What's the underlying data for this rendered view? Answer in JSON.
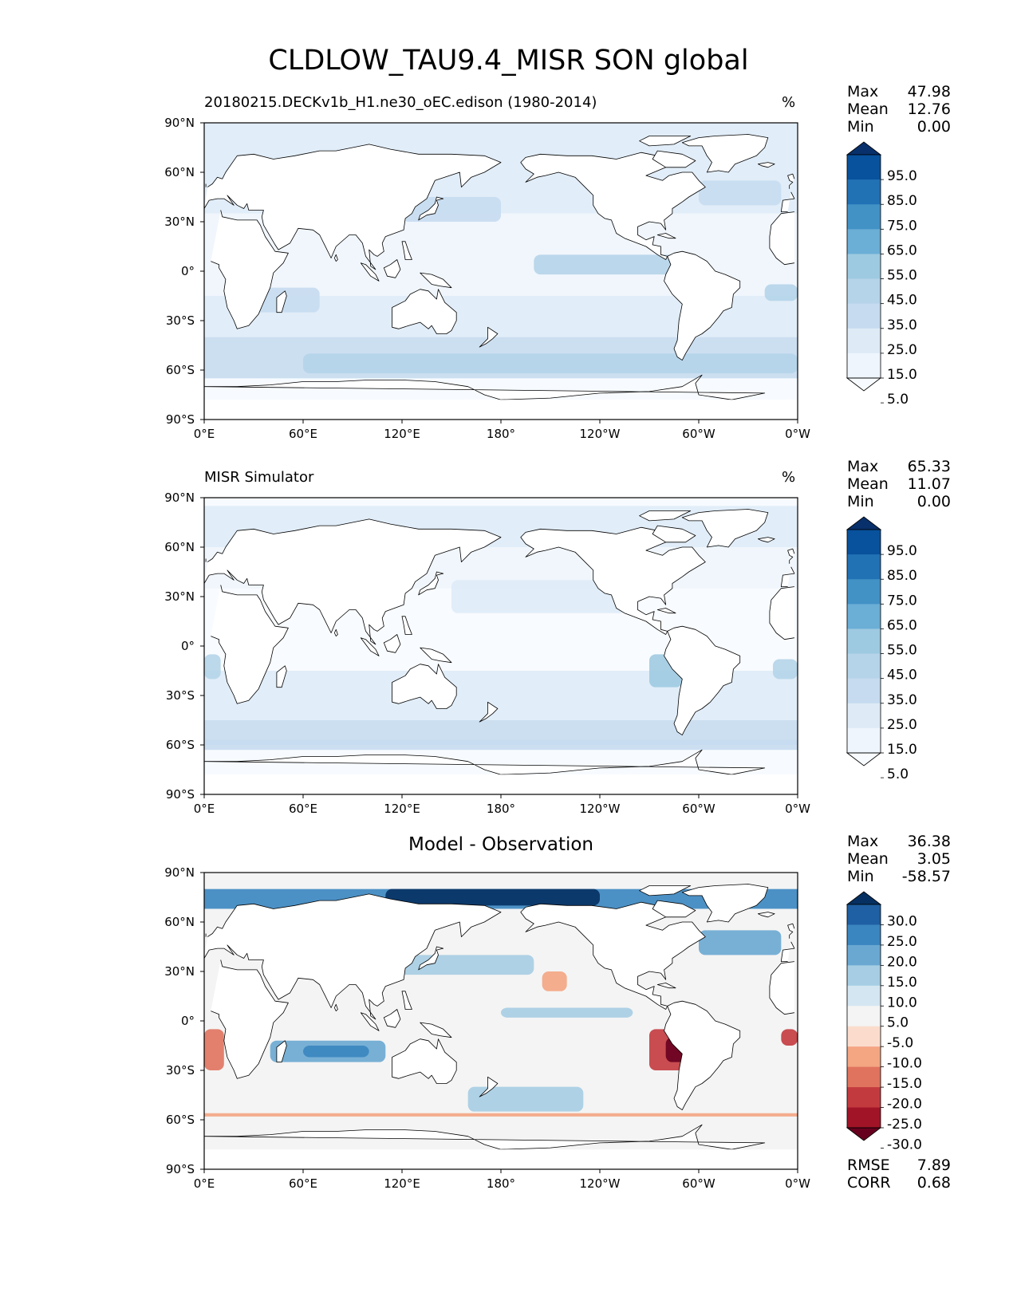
{
  "title": "CLDLOW_TAU9.4_MISR SON global",
  "axes": {
    "lat_labels": [
      "90°N",
      "60°N",
      "30°N",
      "0°",
      "30°S",
      "60°S",
      "90°S"
    ],
    "lon_labels": [
      "0°E",
      "60°E",
      "120°E",
      "180°",
      "120°W",
      "60°W",
      "0°W"
    ]
  },
  "panels": [
    {
      "subtitle": "20180215.DECKv1b_H1.ne30_oEC.edison (1980-2014)",
      "units": "%",
      "stats": {
        "max_label": "Max",
        "max": "47.98",
        "mean_label": "Mean",
        "mean": "12.76",
        "min_label": "Min",
        "min": "0.00"
      },
      "colorbar": {
        "labels": [
          "95.0",
          "85.0",
          "75.0",
          "65.0",
          "55.0",
          "45.0",
          "35.0",
          "25.0",
          "15.0",
          "5.0"
        ],
        "colors": [
          "#08306b",
          "#08519c",
          "#2171b5",
          "#4292c6",
          "#6baed6",
          "#9ecae1",
          "#b5d4e9",
          "#c6dbef",
          "#deebf7",
          "#eef5fc",
          "#f7fbff"
        ]
      }
    },
    {
      "subtitle": "MISR Simulator",
      "units": "%",
      "stats": {
        "max_label": "Max",
        "max": "65.33",
        "mean_label": "Mean",
        "mean": "11.07",
        "min_label": "Min",
        "min": "0.00"
      },
      "colorbar": {
        "labels": [
          "95.0",
          "85.0",
          "75.0",
          "65.0",
          "55.0",
          "45.0",
          "35.0",
          "25.0",
          "15.0",
          "5.0"
        ],
        "colors": [
          "#08306b",
          "#08519c",
          "#2171b5",
          "#4292c6",
          "#6baed6",
          "#9ecae1",
          "#b5d4e9",
          "#c6dbef",
          "#deebf7",
          "#eef5fc",
          "#f7fbff"
        ]
      }
    },
    {
      "subtitle": "Model - Observation",
      "units": "",
      "stats": {
        "max_label": "Max",
        "max": "36.38",
        "mean_label": "Mean",
        "mean": "3.05",
        "min_label": "Min",
        "min": "-58.57"
      },
      "colorbar": {
        "labels": [
          "30.0",
          "25.0",
          "20.0",
          "15.0",
          "10.0",
          "5.0",
          "-5.0",
          "-10.0",
          "-15.0",
          "-20.0",
          "-25.0",
          "-30.0"
        ],
        "colors": [
          "#053061",
          "#1f5fa3",
          "#3a86c0",
          "#6aa8d2",
          "#a6cde3",
          "#d4e6f1",
          "#f4f4f4",
          "#fbdccc",
          "#f4a582",
          "#e0735e",
          "#c33a3e",
          "#a11428",
          "#67001f"
        ]
      },
      "metrics": {
        "rmse_label": "RMSE",
        "rmse": "7.89",
        "corr_label": "CORR",
        "corr": "0.68"
      }
    }
  ]
}
